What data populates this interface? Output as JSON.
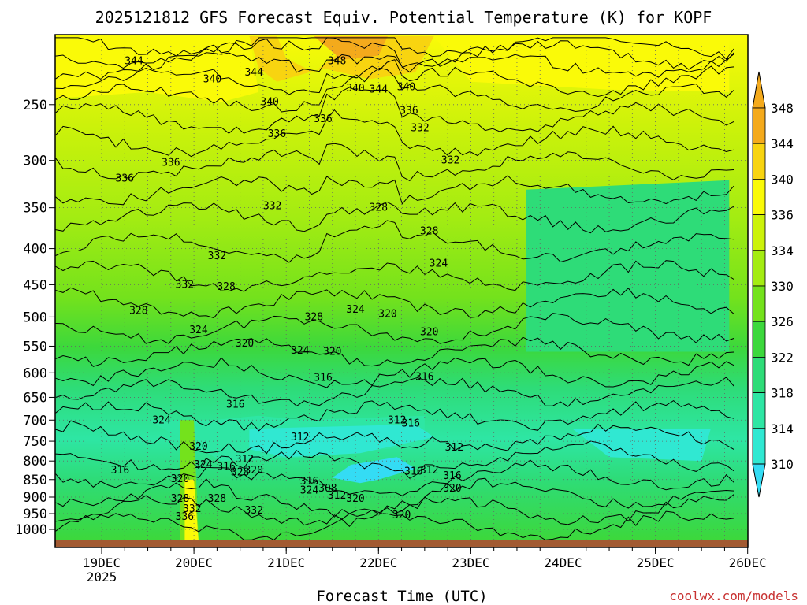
{
  "chart_data": {
    "type": "heatmap",
    "title": "2025121812 GFS Forecast Equiv. Potential Temperature (K) for KOPF",
    "xlabel": "Forecast Time (UTC)",
    "credit": "coolwx.com/models",
    "x_ticks": [
      "19DEC",
      "20DEC",
      "21DEC",
      "22DEC",
      "23DEC",
      "24DEC",
      "25DEC",
      "26DEC"
    ],
    "x_year_label": "2025",
    "y_ticks": [
      250,
      300,
      350,
      400,
      450,
      500,
      550,
      600,
      650,
      700,
      750,
      800,
      850,
      900,
      950,
      1000
    ],
    "colorbar_levels": [
      310,
      314,
      318,
      322,
      326,
      330,
      334,
      336,
      340,
      344,
      348
    ],
    "colorbar_colors": [
      "#34dcf4",
      "#30e8d2",
      "#2ee6a4",
      "#2edc78",
      "#3cd83c",
      "#74e21c",
      "#a4ec12",
      "#ccf20a",
      "#fafa08",
      "#f8d410",
      "#f4aa1c"
    ],
    "ground_color": "#a25a32",
    "contour_labels": [
      {
        "t": 0.35,
        "p": 217,
        "v": "344"
      },
      {
        "t": 2.55,
        "p": 217,
        "v": "348"
      },
      {
        "t": 1.65,
        "p": 225,
        "v": "344"
      },
      {
        "t": 1.2,
        "p": 230,
        "v": "340"
      },
      {
        "t": 2.75,
        "p": 237,
        "v": "340"
      },
      {
        "t": 3.0,
        "p": 238,
        "v": "344"
      },
      {
        "t": 3.3,
        "p": 236,
        "v": "340"
      },
      {
        "t": 1.82,
        "p": 248,
        "v": "340"
      },
      {
        "t": 3.33,
        "p": 255,
        "v": "336"
      },
      {
        "t": 2.4,
        "p": 262,
        "v": "336"
      },
      {
        "t": 3.45,
        "p": 270,
        "v": "332"
      },
      {
        "t": 1.9,
        "p": 275,
        "v": "336"
      },
      {
        "t": 0.75,
        "p": 302,
        "v": "336"
      },
      {
        "t": 0.25,
        "p": 318,
        "v": "336"
      },
      {
        "t": 3.78,
        "p": 300,
        "v": "332"
      },
      {
        "t": 1.85,
        "p": 348,
        "v": "332"
      },
      {
        "t": 3.0,
        "p": 350,
        "v": "328"
      },
      {
        "t": 3.55,
        "p": 378,
        "v": "328"
      },
      {
        "t": 1.25,
        "p": 410,
        "v": "332"
      },
      {
        "t": 3.65,
        "p": 420,
        "v": "324"
      },
      {
        "t": 0.9,
        "p": 450,
        "v": "332"
      },
      {
        "t": 1.35,
        "p": 453,
        "v": "328"
      },
      {
        "t": 0.4,
        "p": 490,
        "v": "328"
      },
      {
        "t": 2.75,
        "p": 488,
        "v": "324"
      },
      {
        "t": 3.1,
        "p": 495,
        "v": "320"
      },
      {
        "t": 2.3,
        "p": 500,
        "v": "328"
      },
      {
        "t": 1.05,
        "p": 522,
        "v": "324"
      },
      {
        "t": 3.55,
        "p": 525,
        "v": "320"
      },
      {
        "t": 1.55,
        "p": 545,
        "v": "320"
      },
      {
        "t": 2.15,
        "p": 558,
        "v": "324"
      },
      {
        "t": 2.5,
        "p": 560,
        "v": "320"
      },
      {
        "t": 2.4,
        "p": 610,
        "v": "316"
      },
      {
        "t": 3.5,
        "p": 608,
        "v": "316"
      },
      {
        "t": 1.45,
        "p": 665,
        "v": "316"
      },
      {
        "t": 0.65,
        "p": 700,
        "v": "324"
      },
      {
        "t": 3.2,
        "p": 700,
        "v": "312"
      },
      {
        "t": 3.35,
        "p": 708,
        "v": "316"
      },
      {
        "t": 2.15,
        "p": 740,
        "v": "312"
      },
      {
        "t": 1.05,
        "p": 763,
        "v": "320"
      },
      {
        "t": 3.82,
        "p": 765,
        "v": "312"
      },
      {
        "t": 1.55,
        "p": 795,
        "v": "312"
      },
      {
        "t": 1.1,
        "p": 810,
        "v": "324"
      },
      {
        "t": 1.35,
        "p": 815,
        "v": "316"
      },
      {
        "t": 1.65,
        "p": 825,
        "v": "320"
      },
      {
        "t": 1.5,
        "p": 830,
        "v": "328"
      },
      {
        "t": 0.2,
        "p": 825,
        "v": "316"
      },
      {
        "t": 3.38,
        "p": 828,
        "v": "316"
      },
      {
        "t": 3.55,
        "p": 825,
        "v": "312"
      },
      {
        "t": 3.8,
        "p": 840,
        "v": "316"
      },
      {
        "t": 0.85,
        "p": 848,
        "v": "320"
      },
      {
        "t": 2.25,
        "p": 855,
        "v": "316"
      },
      {
        "t": 2.45,
        "p": 875,
        "v": "308"
      },
      {
        "t": 2.25,
        "p": 880,
        "v": "324"
      },
      {
        "t": 3.8,
        "p": 875,
        "v": "320"
      },
      {
        "t": 2.55,
        "p": 895,
        "v": "312"
      },
      {
        "t": 2.75,
        "p": 905,
        "v": "320"
      },
      {
        "t": 0.85,
        "p": 905,
        "v": "328"
      },
      {
        "t": 1.25,
        "p": 905,
        "v": "328"
      },
      {
        "t": 0.98,
        "p": 935,
        "v": "332"
      },
      {
        "t": 1.65,
        "p": 940,
        "v": "332"
      },
      {
        "t": 0.9,
        "p": 960,
        "v": "336"
      },
      {
        "t": 3.25,
        "p": 955,
        "v": "320"
      }
    ]
  }
}
